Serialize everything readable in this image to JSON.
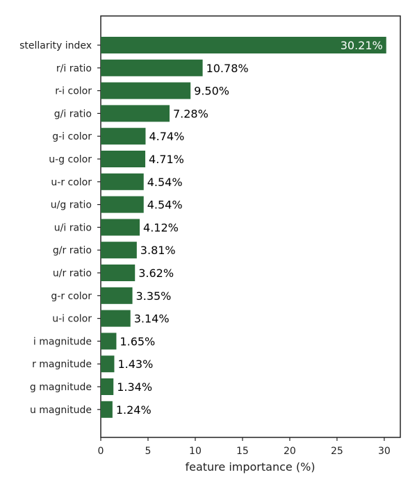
{
  "chart_data": {
    "type": "bar",
    "orientation": "horizontal",
    "title": "",
    "xlabel": "feature importance (%)",
    "ylabel": "",
    "xlim": [
      0,
      31.7
    ],
    "x_ticks": [
      0,
      5,
      10,
      15,
      20,
      25,
      30
    ],
    "grid": false,
    "bar_color": "#2a6e3a",
    "categories": [
      "stellarity index",
      "r/i ratio",
      "r-i color",
      "g/i ratio",
      "g-i color",
      "u-g color",
      "u-r color",
      "u/g ratio",
      "u/i ratio",
      "g/r ratio",
      "u/r ratio",
      "g-r color",
      "u-i color",
      "i magnitude",
      "r magnitude",
      "g magnitude",
      "u magnitude"
    ],
    "values": [
      30.21,
      10.78,
      9.5,
      7.28,
      4.74,
      4.71,
      4.54,
      4.54,
      4.12,
      3.81,
      3.62,
      3.35,
      3.14,
      1.65,
      1.43,
      1.34,
      1.24
    ],
    "value_labels": [
      "30.21%",
      "10.78%",
      "9.50%",
      "7.28%",
      "4.74%",
      "4.71%",
      "4.54%",
      "4.54%",
      "4.12%",
      "3.81%",
      "3.62%",
      "3.35%",
      "3.14%",
      "1.65%",
      "1.43%",
      "1.34%",
      "1.24%"
    ]
  }
}
